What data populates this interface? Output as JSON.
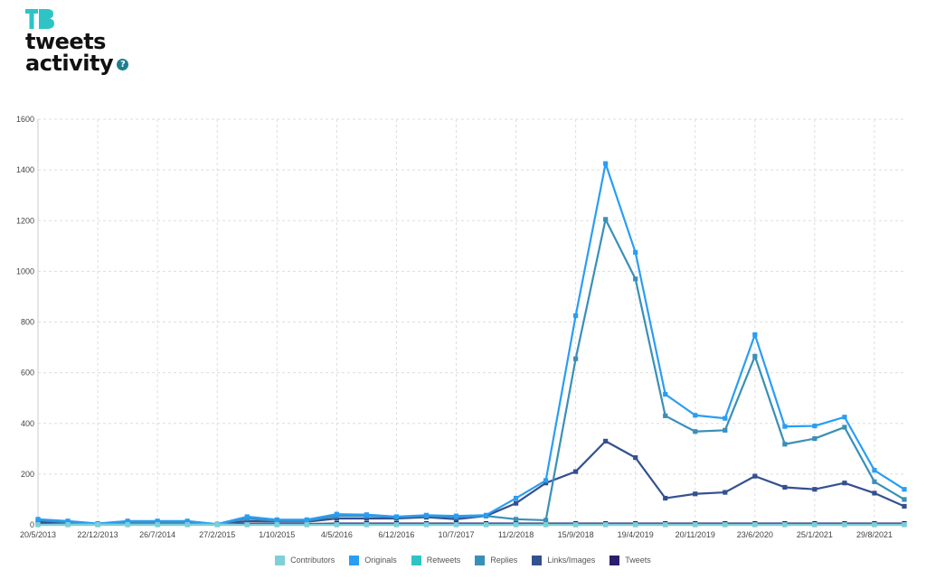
{
  "header": {
    "logo_text": "TB",
    "title_line1": "tweets",
    "title_line2": "activity",
    "help_icon_glyph": "?"
  },
  "chart_data": {
    "type": "line",
    "x": [
      "20/5/2013",
      "5/10/2013",
      "22/12/2013",
      "9/3/2014",
      "26/7/2014",
      "11/12/2014",
      "27/2/2015",
      "15/6/2015",
      "1/10/2015",
      "17/1/2016",
      "4/5/2016",
      "20/8/2016",
      "6/12/2016",
      "25/3/2017",
      "10/7/2017",
      "28/10/2017",
      "11/2/2018",
      "31/5/2018",
      "15/9/2018",
      "31/12/2018",
      "19/4/2019",
      "5/8/2019",
      "20/11/2019",
      "6/3/2020",
      "23/6/2020",
      "8/10/2020",
      "25/1/2021",
      "12/5/2021",
      "29/8/2021",
      "15/12/2021"
    ],
    "x_tick_labels": [
      "20/5/2013",
      "22/12/2013",
      "26/7/2014",
      "27/2/2015",
      "1/10/2015",
      "4/5/2016",
      "6/12/2016",
      "10/7/2017",
      "11/2/2018",
      "15/9/2018",
      "19/4/2019",
      "20/11/2019",
      "23/6/2020",
      "25/1/2021",
      "29/8/2021"
    ],
    "y_ticks": [
      0,
      200,
      400,
      600,
      800,
      1000,
      1200,
      1400,
      1600
    ],
    "ylim": [
      0,
      1600
    ],
    "grid": true,
    "legend_position": "bottom",
    "series": [
      {
        "name": "Contributors",
        "color": "#7fcfd8",
        "values": [
          1,
          1,
          1,
          1,
          1,
          1,
          1,
          1,
          1,
          1,
          1,
          1,
          1,
          1,
          1,
          1,
          1,
          1,
          1,
          1,
          1,
          1,
          1,
          1,
          1,
          1,
          1,
          1,
          1,
          1
        ]
      },
      {
        "name": "Originals",
        "color": "#2a9df4",
        "values": [
          22,
          15,
          5,
          15,
          15,
          15,
          3,
          32,
          20,
          20,
          42,
          40,
          32,
          38,
          35,
          38,
          105,
          175,
          825,
          1425,
          1075,
          515,
          432,
          420,
          750,
          388,
          390,
          425,
          215,
          140
        ]
      },
      {
        "name": "Retweets",
        "color": "#2ec4c6",
        "values": [
          0,
          0,
          0,
          0,
          0,
          0,
          0,
          0,
          0,
          0,
          0,
          0,
          0,
          0,
          0,
          0,
          0,
          0,
          0,
          0,
          0,
          0,
          0,
          0,
          0,
          0,
          0,
          0,
          0,
          0
        ]
      },
      {
        "name": "Replies",
        "color": "#3a8fb7",
        "values": [
          18,
          10,
          3,
          10,
          10,
          10,
          2,
          25,
          15,
          15,
          35,
          35,
          30,
          35,
          30,
          35,
          22,
          18,
          655,
          1205,
          970,
          430,
          368,
          373,
          665,
          318,
          340,
          385,
          170,
          100
        ]
      },
      {
        "name": "Links/Images",
        "color": "#34508f",
        "values": [
          12,
          8,
          2,
          8,
          8,
          8,
          1,
          15,
          12,
          12,
          25,
          25,
          25,
          30,
          22,
          35,
          85,
          165,
          210,
          330,
          265,
          105,
          122,
          128,
          192,
          148,
          140,
          165,
          125,
          73
        ]
      },
      {
        "name": "Tweets",
        "color": "#2a1f6e",
        "values": [
          5,
          3,
          1,
          3,
          3,
          3,
          1,
          5,
          3,
          3,
          5,
          5,
          5,
          5,
          5,
          5,
          5,
          5,
          5,
          5,
          5,
          5,
          5,
          5,
          5,
          5,
          5,
          5,
          5,
          5
        ]
      }
    ]
  }
}
